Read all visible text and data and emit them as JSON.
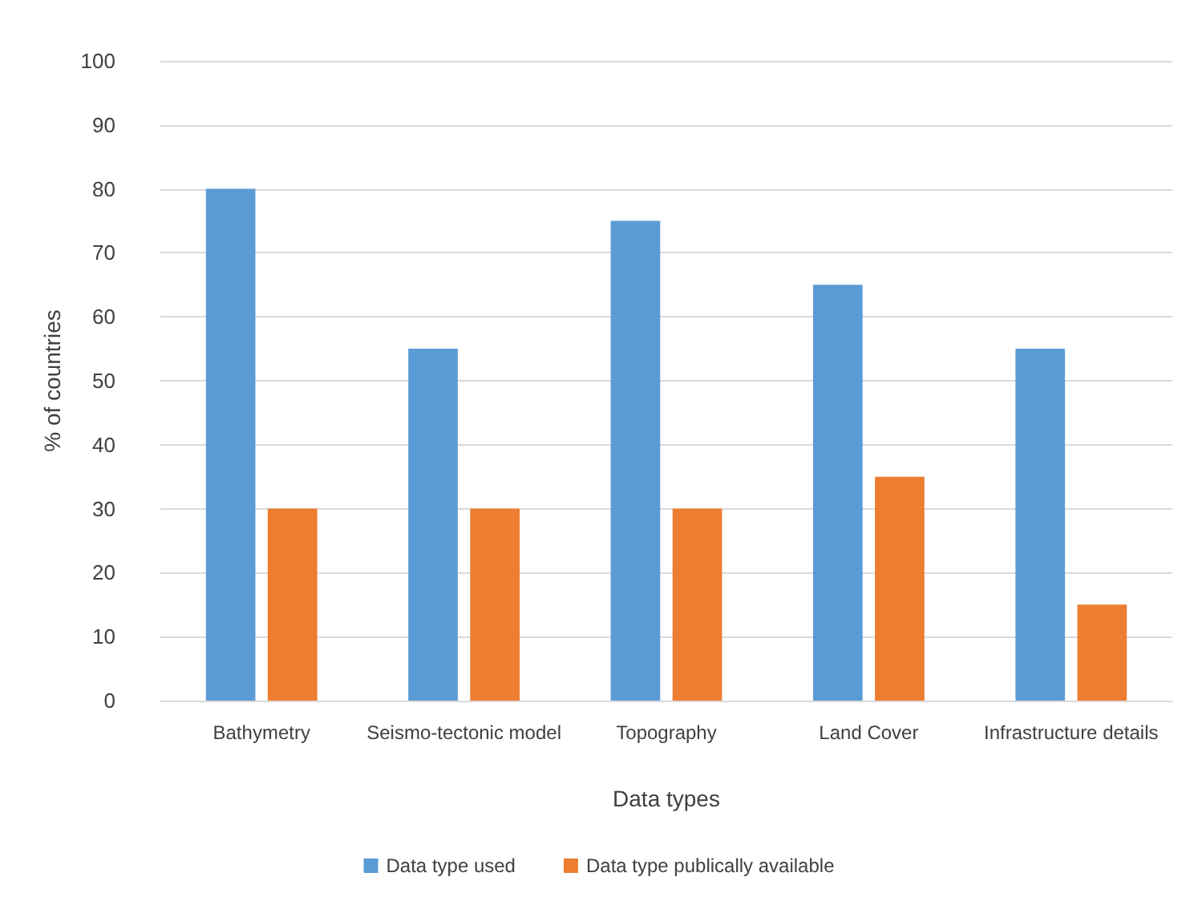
{
  "chart_data": {
    "type": "bar",
    "xlabel": "Data types",
    "ylabel": "% of countries",
    "categories": [
      "Bathymetry",
      "Seismo-tectonic model",
      "Topography",
      "Land Cover",
      "Infrastructure details"
    ],
    "series": [
      {
        "name": "Data type used",
        "color": "#5b9bd5",
        "values": [
          80,
          55,
          75,
          65,
          55
        ]
      },
      {
        "name": "Data type publically available",
        "color": "#ed7d31",
        "values": [
          30,
          30,
          30,
          35,
          15
        ]
      }
    ],
    "ylim": [
      0,
      100
    ],
    "yticks": [
      0,
      10,
      20,
      30,
      40,
      50,
      60,
      70,
      80,
      90,
      100
    ],
    "grid": "y",
    "legend": "bottom"
  }
}
